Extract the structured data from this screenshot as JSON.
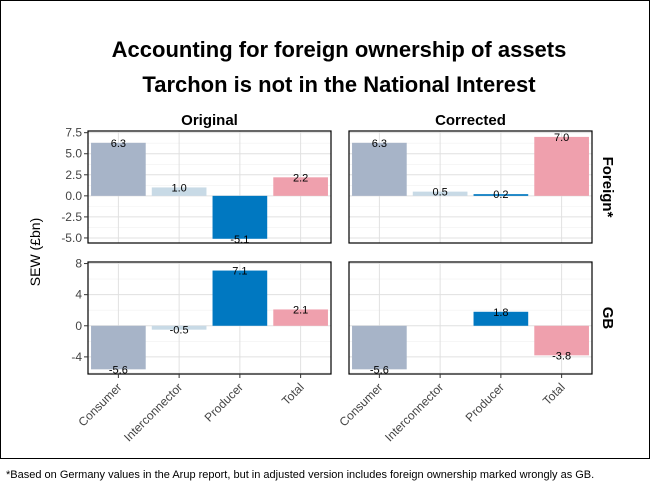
{
  "chart_data": {
    "type": "bar",
    "title_lines": [
      "Accounting for foreign ownership of assets",
      "Tarchon is not in the National Interest"
    ],
    "ylabel": "SEW (£bn)",
    "caption": "*Based on Germany values in the Arup report, but in adjusted version includes foreign ownership marked wrongly as GB.",
    "columns": [
      "Original",
      "Corrected"
    ],
    "rows": [
      "Foreign*",
      "GB"
    ],
    "categories": [
      "Consumer",
      "Interconnector",
      "Producer",
      "Total"
    ],
    "colors": [
      "#a7b4c8",
      "#c8dae6",
      "#0078c1",
      "#efa0ad"
    ],
    "panels": [
      {
        "row": 0,
        "col": 0,
        "values": [
          6.3,
          1.0,
          -5.1,
          2.2
        ],
        "labels": [
          "6.3",
          "1.0",
          "-5.1",
          "2.2"
        ]
      },
      {
        "row": 0,
        "col": 1,
        "values": [
          6.3,
          0.5,
          0.2,
          7.0
        ],
        "labels": [
          "6.3",
          "0.5",
          "0.2",
          "7.0"
        ]
      },
      {
        "row": 1,
        "col": 0,
        "values": [
          -5.6,
          -0.5,
          7.1,
          2.1
        ],
        "labels": [
          "-5.6",
          "-0.5",
          "7.1",
          "2.1"
        ]
      },
      {
        "row": 1,
        "col": 1,
        "values": [
          -5.6,
          0.0,
          1.8,
          -3.8
        ],
        "labels": [
          "-5.6",
          "",
          "1.8",
          "-3.8"
        ]
      }
    ],
    "row_axes": [
      {
        "ylim": [
          -5.6,
          7.7
        ],
        "ticks": [
          7.5,
          5.0,
          2.5,
          0.0,
          -2.5,
          -5.0
        ],
        "tick_labels": [
          "7.5",
          "5.0",
          "2.5",
          "0.0",
          "-2.5",
          "-5.0"
        ],
        "minor": [
          6.25,
          3.75,
          1.25,
          -1.25,
          -3.75
        ]
      },
      {
        "ylim": [
          -6.2,
          8.2
        ],
        "ticks": [
          8,
          4,
          0,
          -4
        ],
        "tick_labels": [
          "8",
          "4",
          "0",
          "-4"
        ],
        "minor": [
          6,
          2,
          -2,
          -6
        ]
      }
    ],
    "grid": true
  }
}
